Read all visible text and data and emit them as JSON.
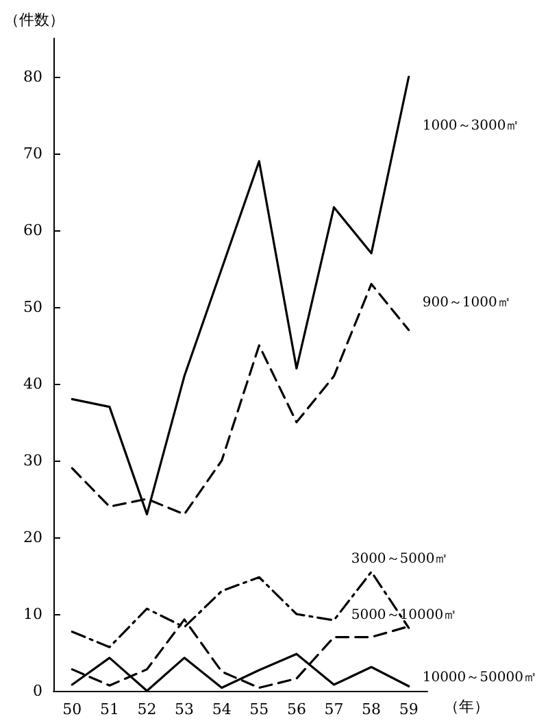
{
  "chart_data": {
    "type": "line",
    "xlabel": "（年）",
    "ylabel": "（件数）",
    "categories": [
      "50",
      "51",
      "52",
      "53",
      "54",
      "55",
      "56",
      "57",
      "58",
      "59"
    ],
    "series": [
      {
        "name": "1000～3000㎡",
        "color": "#000000",
        "line_style": "solid",
        "values": [
          38,
          37,
          23,
          41,
          55,
          69,
          42,
          63,
          57,
          80
        ]
      },
      {
        "name": "900～1000㎡",
        "color": "#000000",
        "line_style": "dashed",
        "values": [
          29,
          24,
          25,
          23,
          30,
          45,
          35,
          41,
          53,
          47
        ]
      },
      {
        "name": "3000～5000㎡",
        "color": "#000000",
        "line_style": "dashdot",
        "values": [
          7.7,
          5.7,
          10.7,
          8.3,
          13,
          14.8,
          10,
          9.2,
          15.5,
          8.2
        ]
      },
      {
        "name": "5000～10000㎡",
        "color": "#000000",
        "line_style": "dashed",
        "values": [
          2.8,
          0.7,
          2.8,
          9.3,
          2.5,
          0.4,
          1.6,
          7,
          7,
          8.4
        ]
      },
      {
        "name": "10000～50000㎡",
        "color": "#000000",
        "line_style": "solid",
        "values": [
          0.8,
          4.3,
          0,
          4.3,
          0.4,
          2.7,
          4.8,
          0.8,
          3.1,
          0.6
        ]
      }
    ],
    "ylim": [
      0,
      85
    ],
    "yticks": [
      0,
      10,
      20,
      30,
      40,
      50,
      60,
      70,
      80
    ],
    "grid": false,
    "legend": false,
    "marker": "none"
  }
}
